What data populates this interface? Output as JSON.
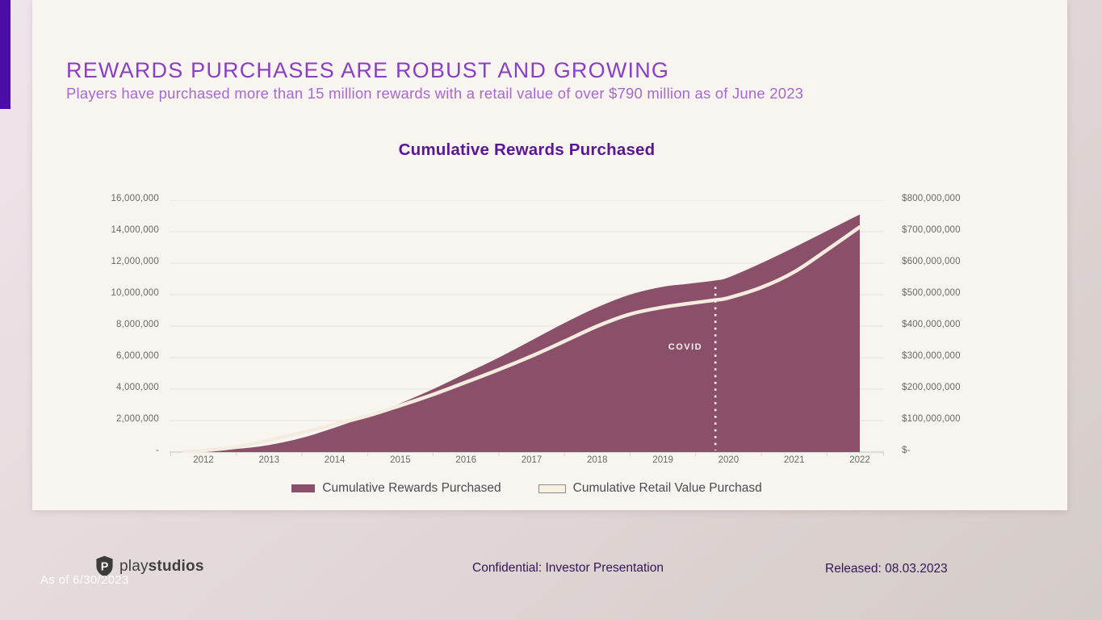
{
  "slide": {
    "title": "REWARDS PURCHASES ARE ROBUST AND GROWING",
    "subtitle": "Players have purchased more than 15 million rewards with a retail value of over $790 million as of June 2023"
  },
  "chart_data": {
    "type": "area",
    "title": "Cumulative Rewards Purchased",
    "grid": true,
    "legend_position": "bottom",
    "x_axis": {
      "categories": [
        "2012",
        "2013",
        "2014",
        "2015",
        "2016",
        "2017",
        "2018",
        "2019",
        "2020",
        "2021",
        "2022"
      ]
    },
    "y_axis_left": {
      "tick_labels": [
        "16,000,000",
        "14,000,000",
        "12,000,000",
        "10,000,000",
        "8,000,000",
        "6,000,000",
        "4,000,000",
        "2,000,000",
        "-"
      ],
      "range": [
        0,
        16000000
      ]
    },
    "y_axis_right": {
      "tick_labels": [
        "$800,000,000",
        "$700,000,000",
        "$600,000,000",
        "$500,000,000",
        "$400,000,000",
        "$300,000,000",
        "$200,000,000",
        "$100,000,000",
        "$-"
      ],
      "range": [
        0,
        800000000
      ]
    },
    "series": [
      {
        "name": "Cumulative Rewards Purchased",
        "style": "area",
        "axis": "left",
        "color": "#8a5069",
        "points": [
          [
            2011.7,
            0
          ],
          [
            2012,
            80000
          ],
          [
            2012.5,
            200000
          ],
          [
            2013,
            450000
          ],
          [
            2013.5,
            900000
          ],
          [
            2014,
            1550000
          ],
          [
            2014.5,
            2300000
          ],
          [
            2015,
            3100000
          ],
          [
            2015.5,
            4000000
          ],
          [
            2016,
            5000000
          ],
          [
            2016.5,
            6000000
          ],
          [
            2017,
            7100000
          ],
          [
            2017.5,
            8200000
          ],
          [
            2018,
            9200000
          ],
          [
            2018.5,
            10000000
          ],
          [
            2019,
            10500000
          ],
          [
            2019.4,
            10700000
          ],
          [
            2019.8,
            10900000
          ],
          [
            2020,
            11100000
          ],
          [
            2020.5,
            12000000
          ],
          [
            2021,
            13000000
          ],
          [
            2021.5,
            14050000
          ],
          [
            2022,
            15100000
          ]
        ]
      },
      {
        "name": "Cumulative Retail Value Purchasd",
        "style": "line",
        "axis": "right",
        "color": "#f4ecdf",
        "points": [
          [
            2011.7,
            0
          ],
          [
            2012,
            5000000
          ],
          [
            2012.5,
            16000000
          ],
          [
            2013,
            38000000
          ],
          [
            2013.5,
            62000000
          ],
          [
            2014,
            88000000
          ],
          [
            2014.5,
            115000000
          ],
          [
            2015,
            148000000
          ],
          [
            2015.5,
            183000000
          ],
          [
            2016,
            222000000
          ],
          [
            2016.5,
            262000000
          ],
          [
            2017,
            305000000
          ],
          [
            2017.5,
            352000000
          ],
          [
            2018,
            400000000
          ],
          [
            2018.5,
            438000000
          ],
          [
            2019,
            460000000
          ],
          [
            2019.5,
            475000000
          ],
          [
            2019.8,
            483000000
          ],
          [
            2020,
            490000000
          ],
          [
            2020.5,
            523000000
          ],
          [
            2021,
            572000000
          ],
          [
            2021.5,
            642000000
          ],
          [
            2022,
            715000000
          ]
        ]
      }
    ],
    "annotations": [
      {
        "label": "COVID",
        "x": 2019.8
      }
    ]
  },
  "footer": {
    "logo_regular": "play",
    "logo_bold": "studios",
    "as_of": "As of 6/30/2023",
    "confidential": "Confidential: Investor Presentation",
    "released": "Released: 08.03.2023"
  },
  "colors": {
    "accent_bar": "#4b0da6",
    "card_background": "#f8f5f1",
    "title_purple": "#8a3fc2",
    "subtitle_purple": "#a868d1",
    "chart_title_purple": "#5a1694",
    "rewards_area": "#8a5069",
    "retail_line": "#f4ecdf",
    "footer_purple": "#351457"
  }
}
